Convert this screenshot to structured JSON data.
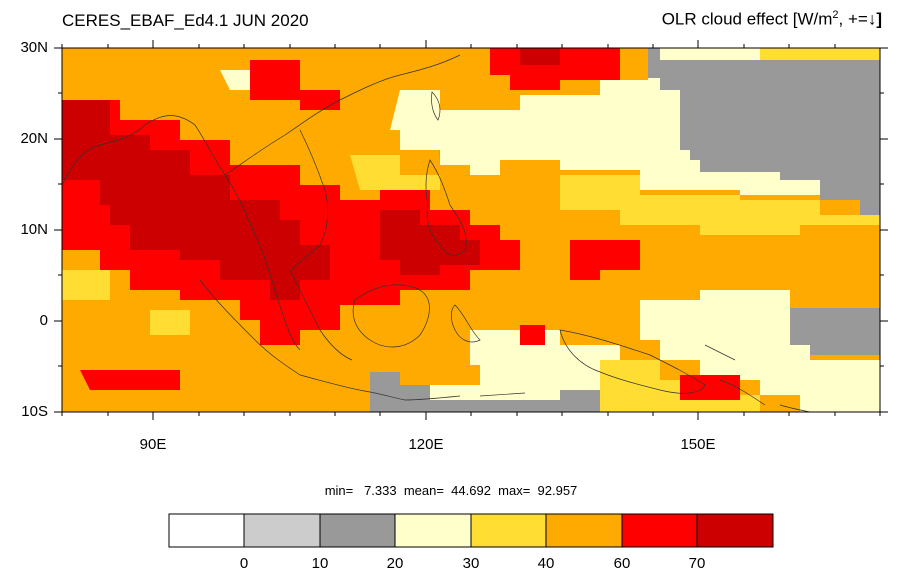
{
  "header": {
    "dataset": "CERES_EBAF_Ed4.1 JUN 2020",
    "variable": "OLR cloud effect [W/m",
    "variable_sup": "2",
    "variable_sign": ", +=",
    "variable_arrow": "↓",
    "variable_close": "]"
  },
  "axes": {
    "lat_labels": [
      "30N",
      "20N",
      "10N",
      "0",
      "10S"
    ],
    "lon_labels": [
      "90E",
      "120E",
      "150E"
    ]
  },
  "stats": {
    "text": "min=   7.333  mean=  44.692  max=  92.957"
  },
  "colorbar": {
    "labels": [
      "0",
      "10",
      "20",
      "30",
      "40",
      "60",
      "70"
    ],
    "colors": [
      "#ffffff",
      "#cccccc",
      "#999999",
      "#ffffcc",
      "#ffdd33",
      "#ffaa00",
      "#ff0000",
      "#cc0000"
    ]
  },
  "map_data": {
    "domain": {
      "lon": [
        80,
        170
      ],
      "lat": [
        -10,
        30
      ]
    },
    "projection": "cylindrical equidistant",
    "coastlines": true
  }
}
